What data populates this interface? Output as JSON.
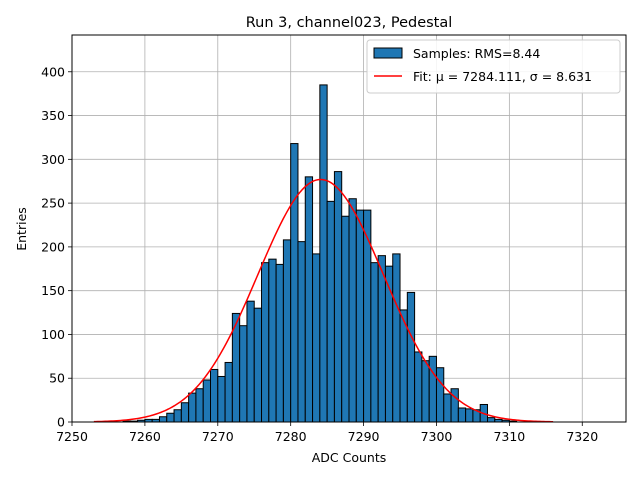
{
  "chart_data": {
    "type": "bar",
    "title": "Run 3, channel023, Pedestal",
    "xlabel": "ADC Counts",
    "ylabel": "Entries",
    "xlim": [
      7250,
      7326
    ],
    "ylim": [
      0,
      442
    ],
    "xticks": [
      7250,
      7260,
      7270,
      7280,
      7290,
      7300,
      7310,
      7320
    ],
    "yticks": [
      0,
      50,
      100,
      150,
      200,
      250,
      300,
      350,
      400
    ],
    "grid": true,
    "legend_position": "top-right",
    "bin_width": 1,
    "histogram": {
      "name": "Samples: RMS=8.44",
      "color": "#1f77b4",
      "edge_color": "#000000",
      "bin_starts": [
        7257,
        7258,
        7259,
        7260,
        7261,
        7262,
        7263,
        7264,
        7265,
        7266,
        7267,
        7268,
        7269,
        7270,
        7271,
        7272,
        7273,
        7274,
        7275,
        7276,
        7277,
        7278,
        7279,
        7280,
        7281,
        7282,
        7283,
        7284,
        7285,
        7286,
        7287,
        7288,
        7289,
        7290,
        7291,
        7292,
        7293,
        7294,
        7295,
        7296,
        7297,
        7298,
        7299,
        7300,
        7301,
        7302,
        7303,
        7304,
        7305,
        7306,
        7307,
        7308,
        7309,
        7310
      ],
      "counts": [
        1,
        1,
        2,
        3,
        3,
        6,
        10,
        14,
        22,
        33,
        38,
        48,
        60,
        52,
        68,
        124,
        110,
        138,
        130,
        182,
        186,
        180,
        208,
        318,
        206,
        280,
        192,
        385,
        252,
        286,
        235,
        255,
        242,
        242,
        182,
        190,
        178,
        192,
        128,
        148,
        80,
        70,
        75,
        62,
        32,
        38,
        16,
        15,
        14,
        20,
        5,
        3,
        2,
        1
      ]
    },
    "fit": {
      "name": "Fit: μ = 7284.111, σ = 8.631",
      "color": "#ff0000",
      "mu": 7284.111,
      "sigma": 8.631,
      "amplitude": 277,
      "x_range": [
        7253,
        7316
      ]
    }
  }
}
